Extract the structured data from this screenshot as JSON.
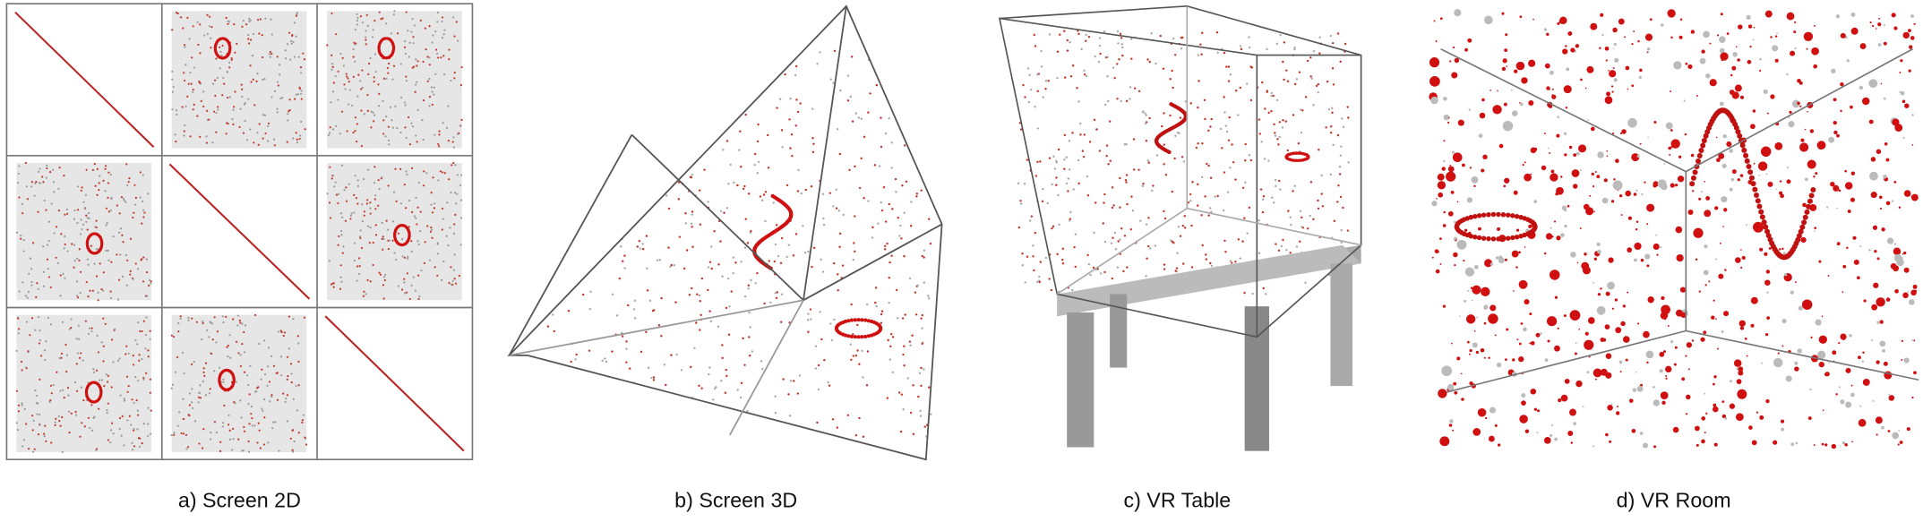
{
  "panels": [
    {
      "caption": "a) Screen 2D"
    },
    {
      "caption": "b) Screen 3D"
    },
    {
      "caption": "c) VR Table"
    },
    {
      "caption": "d) VR Room"
    }
  ]
}
